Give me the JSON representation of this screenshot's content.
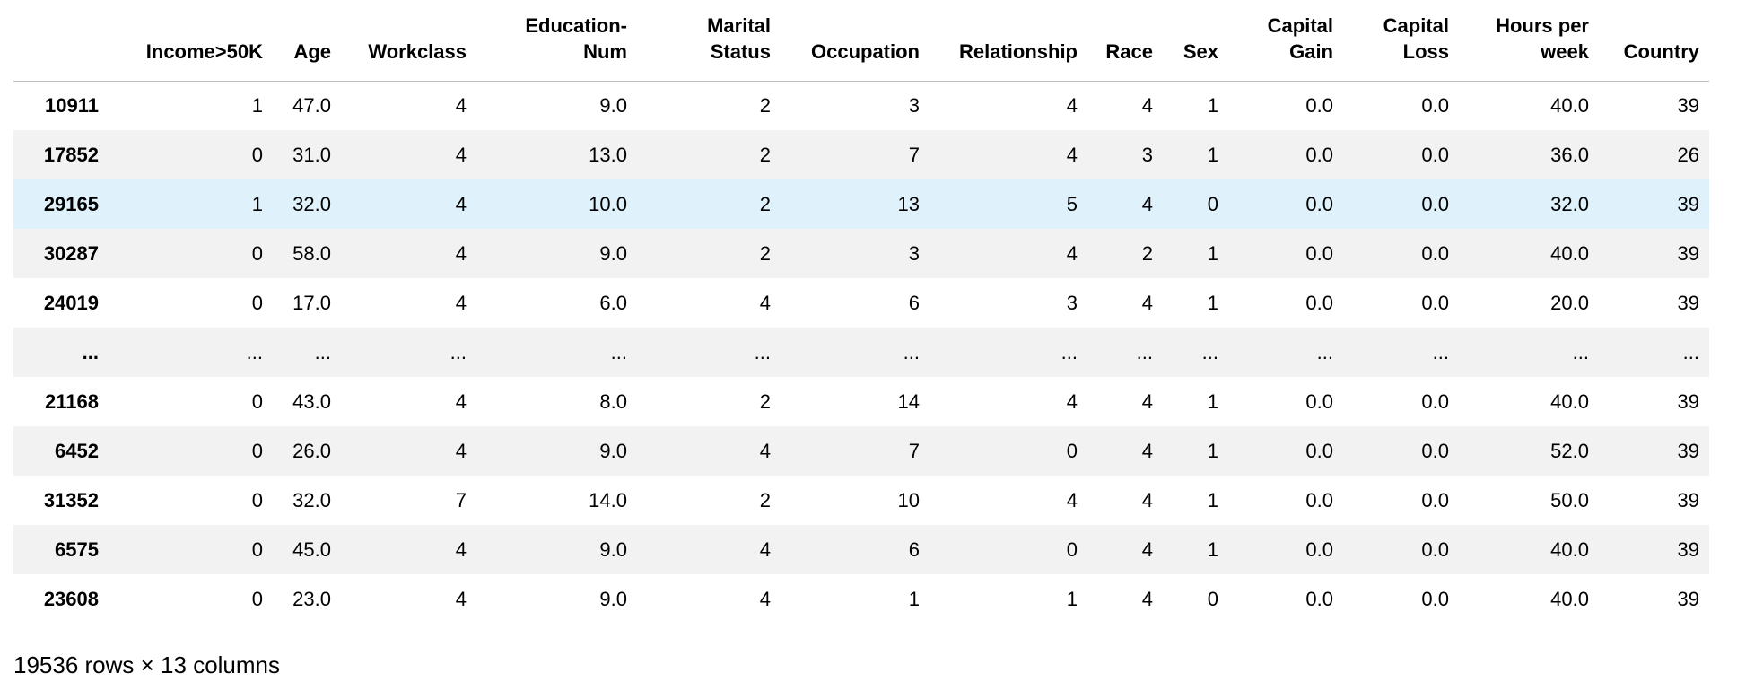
{
  "table": {
    "columns": [
      "Income>50K",
      "Age",
      "Workclass",
      "Education-Num",
      "Marital Status",
      "Occupation",
      "Relationship",
      "Race",
      "Sex",
      "Capital Gain",
      "Capital Loss",
      "Hours per week",
      "Country"
    ],
    "rows": [
      {
        "index": "10911",
        "cells": [
          "1",
          "47.0",
          "4",
          "9.0",
          "2",
          "3",
          "4",
          "4",
          "1",
          "0.0",
          "0.0",
          "40.0",
          "39"
        ]
      },
      {
        "index": "17852",
        "cells": [
          "0",
          "31.0",
          "4",
          "13.0",
          "2",
          "7",
          "4",
          "3",
          "1",
          "0.0",
          "0.0",
          "36.0",
          "26"
        ]
      },
      {
        "index": "29165",
        "cells": [
          "1",
          "32.0",
          "4",
          "10.0",
          "2",
          "13",
          "5",
          "4",
          "0",
          "0.0",
          "0.0",
          "32.0",
          "39"
        ]
      },
      {
        "index": "30287",
        "cells": [
          "0",
          "58.0",
          "4",
          "9.0",
          "2",
          "3",
          "4",
          "2",
          "1",
          "0.0",
          "0.0",
          "40.0",
          "39"
        ]
      },
      {
        "index": "24019",
        "cells": [
          "0",
          "17.0",
          "4",
          "6.0",
          "4",
          "6",
          "3",
          "4",
          "1",
          "0.0",
          "0.0",
          "20.0",
          "39"
        ]
      },
      {
        "index": "...",
        "cells": [
          "...",
          "...",
          "...",
          "...",
          "...",
          "...",
          "...",
          "...",
          "...",
          "...",
          "...",
          "...",
          "..."
        ]
      },
      {
        "index": "21168",
        "cells": [
          "0",
          "43.0",
          "4",
          "8.0",
          "2",
          "14",
          "4",
          "4",
          "1",
          "0.0",
          "0.0",
          "40.0",
          "39"
        ]
      },
      {
        "index": "6452",
        "cells": [
          "0",
          "26.0",
          "4",
          "9.0",
          "4",
          "7",
          "0",
          "4",
          "1",
          "0.0",
          "0.0",
          "52.0",
          "39"
        ]
      },
      {
        "index": "31352",
        "cells": [
          "0",
          "32.0",
          "7",
          "14.0",
          "2",
          "10",
          "4",
          "4",
          "1",
          "0.0",
          "0.0",
          "50.0",
          "39"
        ]
      },
      {
        "index": "6575",
        "cells": [
          "0",
          "45.0",
          "4",
          "9.0",
          "4",
          "6",
          "0",
          "4",
          "1",
          "0.0",
          "0.0",
          "40.0",
          "39"
        ]
      },
      {
        "index": "23608",
        "cells": [
          "0",
          "23.0",
          "4",
          "9.0",
          "4",
          "1",
          "1",
          "4",
          "0",
          "0.0",
          "0.0",
          "40.0",
          "39"
        ]
      }
    ]
  },
  "footer": "19536 rows × 13 columns"
}
